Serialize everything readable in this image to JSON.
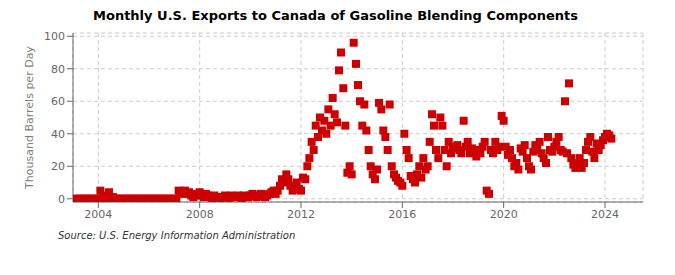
{
  "chart_data": {
    "type": "scatter",
    "title": "Monthly U.S. Exports to Canada of Gasoline Blending Components",
    "ylabel": "Thousand Barrels per Day",
    "annotations": [
      "Source: U.S. Energy Information Administration"
    ],
    "color": "#cc0000",
    "marker": "square",
    "grid": true,
    "xlim": [
      2003.0,
      2025.5
    ],
    "ylim": [
      -2,
      102
    ],
    "xticks": [
      2004,
      2008,
      2012,
      2016,
      2020,
      2024
    ],
    "yticks": [
      0,
      20,
      40,
      60,
      80,
      100
    ],
    "x": [
      2003.08,
      2003.17,
      2003.25,
      2003.33,
      2003.42,
      2003.5,
      2003.58,
      2003.67,
      2003.75,
      2003.83,
      2003.92,
      2004.0,
      2004.08,
      2004.17,
      2004.25,
      2004.33,
      2004.42,
      2004.5,
      2004.58,
      2004.67,
      2004.75,
      2004.83,
      2004.92,
      2005.0,
      2005.08,
      2005.17,
      2005.25,
      2005.33,
      2005.42,
      2005.5,
      2005.58,
      2005.67,
      2005.75,
      2005.83,
      2005.92,
      2006.0,
      2006.08,
      2006.17,
      2006.25,
      2006.33,
      2006.42,
      2006.5,
      2006.58,
      2006.67,
      2006.75,
      2006.83,
      2006.92,
      2007.0,
      2007.08,
      2007.17,
      2007.25,
      2007.33,
      2007.42,
      2007.5,
      2007.58,
      2007.67,
      2007.75,
      2007.83,
      2007.92,
      2008.0,
      2008.08,
      2008.17,
      2008.25,
      2008.33,
      2008.42,
      2008.5,
      2008.58,
      2008.67,
      2008.75,
      2008.83,
      2008.92,
      2009.0,
      2009.08,
      2009.17,
      2009.25,
      2009.33,
      2009.42,
      2009.5,
      2009.58,
      2009.67,
      2009.75,
      2009.83,
      2009.92,
      2010.0,
      2010.08,
      2010.17,
      2010.25,
      2010.33,
      2010.42,
      2010.5,
      2010.58,
      2010.67,
      2010.75,
      2010.83,
      2010.92,
      2011.0,
      2011.08,
      2011.17,
      2011.25,
      2011.33,
      2011.42,
      2011.5,
      2011.58,
      2011.67,
      2011.75,
      2011.83,
      2011.92,
      2012.0,
      2012.08,
      2012.17,
      2012.25,
      2012.33,
      2012.42,
      2012.5,
      2012.58,
      2012.67,
      2012.75,
      2012.83,
      2012.92,
      2013.0,
      2013.08,
      2013.17,
      2013.25,
      2013.33,
      2013.42,
      2013.5,
      2013.58,
      2013.67,
      2013.75,
      2013.83,
      2013.92,
      2014.0,
      2014.08,
      2014.17,
      2014.25,
      2014.33,
      2014.42,
      2014.5,
      2014.58,
      2014.67,
      2014.75,
      2014.83,
      2014.92,
      2015.0,
      2015.08,
      2015.17,
      2015.25,
      2015.33,
      2015.42,
      2015.5,
      2015.58,
      2015.67,
      2015.75,
      2015.83,
      2015.92,
      2016.0,
      2016.08,
      2016.17,
      2016.25,
      2016.33,
      2016.42,
      2016.5,
      2016.58,
      2016.67,
      2016.75,
      2016.83,
      2016.92,
      2017.0,
      2017.08,
      2017.17,
      2017.25,
      2017.33,
      2017.42,
      2017.5,
      2017.58,
      2017.67,
      2017.75,
      2017.83,
      2017.92,
      2018.0,
      2018.08,
      2018.17,
      2018.25,
      2018.33,
      2018.42,
      2018.5,
      2018.58,
      2018.67,
      2018.75,
      2018.83,
      2018.92,
      2019.0,
      2019.08,
      2019.17,
      2019.25,
      2019.33,
      2019.42,
      2019.5,
      2019.58,
      2019.67,
      2019.75,
      2019.83,
      2019.92,
      2020.0,
      2020.08,
      2020.17,
      2020.25,
      2020.33,
      2020.42,
      2020.5,
      2020.58,
      2020.67,
      2020.75,
      2020.83,
      2020.92,
      2021.0,
      2021.08,
      2021.17,
      2021.25,
      2021.33,
      2021.42,
      2021.5,
      2021.58,
      2021.67,
      2021.75,
      2021.83,
      2021.92,
      2022.0,
      2022.08,
      2022.17,
      2022.25,
      2022.33,
      2022.42,
      2022.5,
      2022.58,
      2022.67,
      2022.75,
      2022.83,
      2022.92,
      2023.0,
      2023.08,
      2023.17,
      2023.25,
      2023.33,
      2023.42,
      2023.5,
      2023.58,
      2023.67,
      2023.75,
      2023.83,
      2023.92,
      2024.0,
      2024.08,
      2024.17,
      2024.25
    ],
    "values": [
      0,
      0,
      0,
      0,
      0,
      0,
      0,
      0,
      0,
      0,
      0,
      0,
      5,
      2,
      0,
      0,
      4,
      0,
      1,
      0,
      0,
      0,
      0,
      0,
      0,
      0,
      0,
      0,
      0,
      0,
      0,
      0,
      0,
      0,
      0,
      0,
      0,
      0,
      0,
      0,
      0,
      0,
      0,
      0,
      0,
      0,
      0,
      0,
      0,
      5,
      4,
      3,
      5,
      3,
      4,
      2,
      1,
      3,
      2,
      4,
      2,
      1,
      3,
      2,
      1,
      0,
      2,
      1,
      1,
      0,
      1,
      2,
      1,
      0,
      2,
      1,
      1,
      2,
      1,
      0,
      2,
      1,
      1,
      2,
      3,
      2,
      1,
      2,
      3,
      2,
      1,
      2,
      3,
      4,
      5,
      3,
      5,
      8,
      12,
      10,
      15,
      12,
      8,
      5,
      7,
      10,
      6,
      5,
      13,
      12,
      20,
      25,
      35,
      30,
      45,
      38,
      50,
      42,
      48,
      40,
      55,
      45,
      62,
      52,
      47,
      79,
      90,
      68,
      45,
      16,
      20,
      15,
      96,
      83,
      70,
      60,
      45,
      58,
      42,
      30,
      20,
      15,
      12,
      18,
      59,
      55,
      42,
      38,
      30,
      58,
      20,
      15,
      13,
      11,
      10,
      8,
      40,
      30,
      25,
      14,
      12,
      10,
      15,
      20,
      13,
      25,
      18,
      20,
      35,
      52,
      45,
      30,
      25,
      50,
      45,
      30,
      20,
      35,
      28,
      32,
      31,
      33,
      30,
      28,
      48,
      32,
      35,
      28,
      31,
      29,
      26,
      30,
      28,
      32,
      35,
      5,
      3,
      30,
      28,
      35,
      30,
      32,
      51,
      48,
      32,
      27,
      30,
      25,
      20,
      22,
      18,
      31,
      29,
      33,
      25,
      20,
      18,
      29,
      33,
      30,
      35,
      28,
      25,
      22,
      38,
      30,
      29,
      32,
      35,
      38,
      30,
      29,
      60,
      28,
      71,
      25,
      21,
      19,
      22,
      25,
      19,
      22,
      30,
      35,
      38,
      29,
      25,
      34,
      30,
      33,
      36,
      38,
      40,
      39,
      37
    ]
  }
}
